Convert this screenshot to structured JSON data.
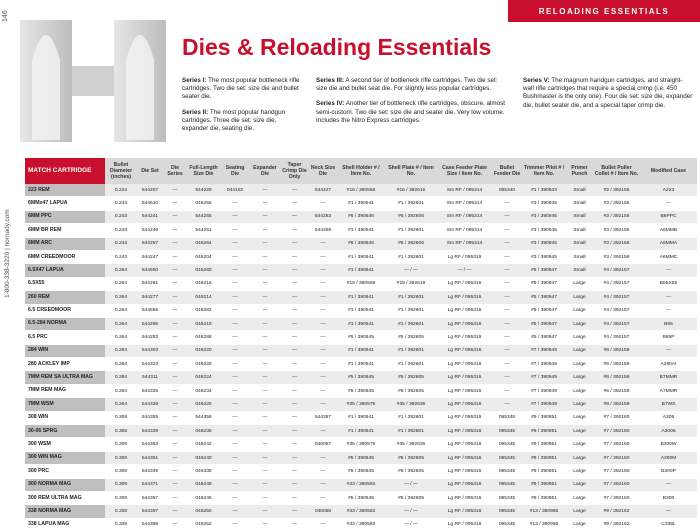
{
  "header": {
    "section": "RELOADING ESSENTIALS",
    "page_number": "146",
    "contact": "1-800-338-3220 | hornady.com",
    "title": "Dies & Reloading Essentials"
  },
  "series": [
    {
      "label": "Series I:",
      "text": "The most popular bottleneck rifle cartridges. Two die set: size die and bullet seater die."
    },
    {
      "label": "Series II:",
      "text": "The most popular handgun cartridges. Three die set: size die, expander die, seating die."
    },
    {
      "label": "Series III:",
      "text": "A second tier of bottleneck rifle cartridges. Two die set: size die and bullet seat die. For slightly less popular cartridges."
    },
    {
      "label": "Series IV:",
      "text": "Another tier of bottleneck rifle cartridges, obscure, almost semi-custom. Two die set: size die and seater die. Very low volume. Includes the Nitro Express cartridges."
    },
    {
      "label": "Series V:",
      "text": "The magnum handgun cartridges, and straight-wall rifle cartridges that require a special crimp (i.e. 450 Bushmaster is the only one). Four die set: size die, expander die, bullet seater die, and a special taper crimp die."
    }
  ],
  "table": {
    "headers": [
      "MATCH CARTRIDGE",
      "Bullet Diameter (inches)",
      "Die Set",
      "Die Series",
      "Full-Length Size Die",
      "Seating Die",
      "Expander Die",
      "Taper Crimp Die Only",
      "Neck Size Die",
      "Shell Holder # / Item No.",
      "Shell Plate # / Item No.",
      "Case Feeder Plate Size / Item No.",
      "Bullet Feeder Die",
      "Trimmer Pilot # / Item No.",
      "Primer Punch",
      "Bullet Puller Collet # / Item No.",
      "Modified Case"
    ],
    "rows": [
      [
        "223 REM",
        "0.224",
        "544207",
        "—",
        "544229",
        "044102",
        "—",
        "—",
        "544227",
        "#16 / 390556",
        "#16 / 392616",
        "Sm RF / 095314",
        "095340",
        "#1 / 390943",
        "Small",
        "#2 / 392155",
        "A223"
      ],
      [
        "6MMx47 LAPUA",
        "0.243",
        "544610",
        "—",
        "046258",
        "—",
        "—",
        "—",
        "—",
        "#1 / 390541",
        "#1 / 392601",
        "Sm RF / 095314",
        "—",
        "#3 / 390945",
        "Small",
        "#3 / 392156",
        "—"
      ],
      [
        "6MM PPC",
        "0.243",
        "544241",
        "—",
        "544255",
        "—",
        "—",
        "—",
        "544253",
        "#6 / 390546",
        "#6 / 392606",
        "Sm RF / 095314",
        "—",
        "#3 / 390945",
        "Small",
        "#3 / 392156",
        "B6PPC"
      ],
      [
        "6MM BR REM",
        "0.243",
        "544249",
        "—",
        "544251",
        "—",
        "—",
        "—",
        "544259",
        "#1 / 390541",
        "#1 / 392601",
        "Sm RF / 095314",
        "—",
        "#3 / 390945",
        "Small",
        "#3 / 392156",
        "A6MMB"
      ],
      [
        "6MM ARC",
        "0.243",
        "544257",
        "—",
        "046264",
        "—",
        "—",
        "—",
        "—",
        "#6 / 390546",
        "#6 / 392606",
        "Sm RF / 095314",
        "—",
        "#3 / 390945",
        "Small",
        "#3 / 392156",
        "A6MMA"
      ],
      [
        "6MM CREEDMOOR",
        "0.243",
        "544247",
        "—",
        "046204",
        "—",
        "—",
        "—",
        "—",
        "#1 / 390541",
        "#1 / 392601",
        "Lg RF / 095316",
        "—",
        "#3 / 390945",
        "Small",
        "#3 / 392156",
        "A6MMC"
      ],
      [
        "6.5X47 LAPUA",
        "0.264",
        "544650",
        "—",
        "046260",
        "—",
        "—",
        "—",
        "—",
        "#1 / 390541",
        "— / —",
        "— / —",
        "—",
        "#5 / 390947",
        "Small",
        "#4 / 392157",
        "—"
      ],
      [
        "6.5X55",
        "0.264",
        "544281",
        "—",
        "046216",
        "—",
        "—",
        "—",
        "—",
        "#19 / 390559",
        "#19 / 392619",
        "Lg RF / 095316",
        "—",
        "#5 / 390947",
        "Large",
        "#4 / 392157",
        "B65X55"
      ],
      [
        "260 REM",
        "0.264",
        "544277",
        "—",
        "046214",
        "—",
        "—",
        "—",
        "—",
        "#1 / 390541",
        "#1 / 392601",
        "Lg RF / 095316",
        "—",
        "#5 / 390947",
        "Large",
        "#4 / 392157",
        "—"
      ],
      [
        "6.5 CREEDMOOR",
        "0.264",
        "544655",
        "—",
        "046282",
        "—",
        "—",
        "—",
        "—",
        "#1 / 390541",
        "#1 / 392601",
        "Lg RF / 095316",
        "—",
        "#5 / 390947",
        "Large",
        "#4 / 392157",
        "—"
      ],
      [
        "6.5-284 NORMA",
        "0.264",
        "544295",
        "—",
        "046218",
        "—",
        "—",
        "—",
        "—",
        "#1 / 390541",
        "#1 / 392601",
        "Lg RF / 095316",
        "—",
        "#5 / 390947",
        "Large",
        "#4 / 392157",
        "B65"
      ],
      [
        "6.5 PRC",
        "0.264",
        "544283",
        "—",
        "046288",
        "—",
        "—",
        "—",
        "—",
        "#5 / 390545",
        "#5 / 392605",
        "Lg RF / 095316",
        "—",
        "#5 / 390947",
        "Large",
        "#4 / 392157",
        "B65P"
      ],
      [
        "284 WIN",
        "0.284",
        "544303",
        "—",
        "046220",
        "—",
        "—",
        "—",
        "—",
        "#1 / 390541",
        "#1 / 392601",
        "Lg RF / 095316",
        "—",
        "#7 / 390949",
        "Large",
        "#6 / 392159",
        "—"
      ],
      [
        "280 ACKLEY IMP",
        "0.284",
        "544323",
        "—",
        "046228",
        "—",
        "—",
        "—",
        "—",
        "#1 / 390541",
        "#1 / 392601",
        "Lg RF / 095316",
        "—",
        "#7 / 390949",
        "Large",
        "#6 / 392159",
        "A280AI"
      ],
      [
        "7MM REM SA ULTRA MAG",
        "0.284",
        "544311",
        "—",
        "046224",
        "—",
        "—",
        "—",
        "—",
        "#5 / 390545",
        "#5 / 392605",
        "Lg RF / 095316",
        "—",
        "#7 / 390949",
        "Large",
        "#6 / 392159",
        "B7MMR"
      ],
      [
        "7MM REM MAG",
        "0.284",
        "544325",
        "—",
        "046234",
        "—",
        "—",
        "—",
        "—",
        "#5 / 390545",
        "#5 / 392605",
        "Lg RF / 095316",
        "—",
        "#7 / 390949",
        "Large",
        "#6 / 392159",
        "A7MMR"
      ],
      [
        "7MM WSM",
        "0.284",
        "544329",
        "—",
        "046226",
        "—",
        "—",
        "—",
        "—",
        "#35 / 390575",
        "#35 / 392635",
        "Lg RF / 095316",
        "—",
        "#7 / 390949",
        "Large",
        "#6 / 392159",
        "B7WS"
      ],
      [
        "308 WIN",
        "0.308",
        "544355",
        "—",
        "544359",
        "—",
        "—",
        "—",
        "544357",
        "#1 / 390541",
        "#1 / 392601",
        "Lg RF / 095316",
        "095345",
        "#9 / 390951",
        "Large",
        "#7 / 392160",
        "A308"
      ],
      [
        "30-06 SPRG",
        "0.308",
        "544339",
        "—",
        "046236",
        "—",
        "—",
        "—",
        "—",
        "#1 / 390541",
        "#1 / 392601",
        "Lg RF / 095316",
        "095345",
        "#9 / 390951",
        "Large",
        "#7 / 392160",
        "A3006"
      ],
      [
        "300 WSM",
        "0.308",
        "544353",
        "—",
        "046242",
        "—",
        "—",
        "—",
        "046057",
        "#35 / 390575",
        "#35 / 392635",
        "Lg RF / 095316",
        "095345",
        "#9 / 390951",
        "Large",
        "#7 / 392160",
        "B300W"
      ],
      [
        "300 WIN MAG",
        "0.308",
        "544351",
        "—",
        "046240",
        "—",
        "—",
        "—",
        "—",
        "#5 / 390545",
        "#5 / 392605",
        "Lg RF / 095316",
        "095345",
        "#9 / 390951",
        "Large",
        "#7 / 392160",
        "A300M"
      ],
      [
        "300 PRC",
        "0.308",
        "544349",
        "—",
        "046338",
        "—",
        "—",
        "—",
        "—",
        "#5 / 390545",
        "#5 / 392605",
        "Lg RF / 095316",
        "095345",
        "#9 / 390951",
        "Large",
        "#7 / 392160",
        "B300P"
      ],
      [
        "300 NORMA MAG",
        "0.308",
        "544371",
        "—",
        "046248",
        "—",
        "—",
        "—",
        "—",
        "#43 / 390583",
        "— / —",
        "Lg RF / 095316",
        "095345",
        "#9 / 390951",
        "Large",
        "#7 / 392160",
        "—"
      ],
      [
        "300 REM ULTRA MAG",
        "0.308",
        "544367",
        "—",
        "046246",
        "—",
        "—",
        "—",
        "—",
        "#5 / 390545",
        "#5 / 392605",
        "Lg RF / 095316",
        "095345",
        "#9 / 390951",
        "Large",
        "#7 / 392160",
        "B300"
      ],
      [
        "338 NORMA MAG",
        "0.338",
        "544397",
        "—",
        "046250",
        "—",
        "—",
        "—",
        "046058",
        "#43 / 390583",
        "— / —",
        "Lg RF / 095316",
        "095345",
        "#13 / 390955",
        "Large",
        "#9 / 392162",
        "—"
      ],
      [
        "338 LAPUA MAG",
        "0.338",
        "544399",
        "—",
        "046252",
        "—",
        "—",
        "—",
        "—",
        "#43 / 390583",
        "— / —",
        "Lg RF / 095316",
        "095345",
        "#13 / 390955",
        "Large",
        "#9 / 392162",
        "C338L"
      ]
    ]
  }
}
